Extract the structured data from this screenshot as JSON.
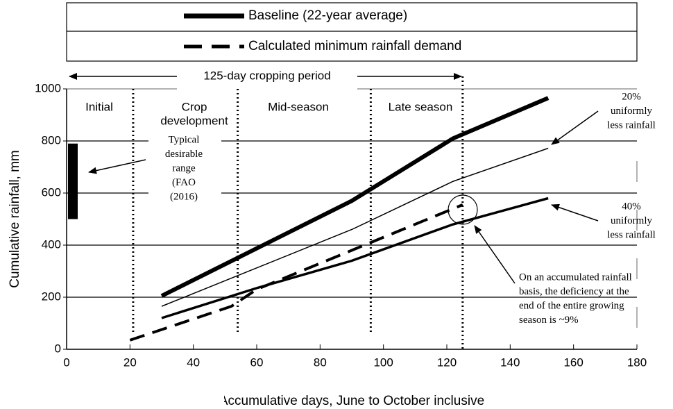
{
  "chart_data": {
    "type": "line",
    "x_label": "Accumulative days, June to October inclusive",
    "y_label": "Cumulative rainfall, mm",
    "xlim": [
      0,
      180
    ],
    "xticks": [
      0,
      20,
      40,
      60,
      80,
      100,
      120,
      140,
      160,
      180
    ],
    "ylim": [
      0,
      1000
    ],
    "yticks": [
      0,
      200,
      400,
      600,
      800,
      1000
    ],
    "grid": true,
    "series": [
      {
        "name": "Baseline (22-year average)",
        "color": "#000000",
        "style": "thick",
        "x": [
          30,
          90,
          122,
          152
        ],
        "values": [
          205,
          570,
          810,
          965
        ]
      },
      {
        "name": "Calculated minimum rainfall demand",
        "color": "#000000",
        "style": "dashed",
        "x": [
          20,
          52,
          60,
          125
        ],
        "values": [
          35,
          165,
          230,
          555
        ]
      },
      {
        "color": "#000000",
        "style": "thin",
        "x": [
          30,
          90,
          122,
          152
        ],
        "values": [
          165,
          460,
          645,
          772
        ]
      },
      {
        "color": "#000000",
        "style": "medium",
        "x": [
          30,
          60,
          90,
          122,
          152
        ],
        "values": [
          120,
          235,
          340,
          480,
          580
        ]
      }
    ],
    "phase_boundaries": [
      21,
      54,
      96,
      125
    ],
    "phases": [
      "Initial",
      [
        "Crop",
        "development"
      ],
      "Mid-season",
      "Late season"
    ],
    "cropping_period": "125-day cropping period",
    "desirable_range": [
      500,
      790
    ],
    "annotations": {
      "range": [
        "Typical",
        "desirable",
        "range",
        "(FAO",
        "(2016)"
      ],
      "less20": [
        "20%",
        "uniformly",
        "less rainfall"
      ],
      "less40": [
        "40%",
        "uniformly",
        "less rainfall"
      ],
      "deficiency": [
        "On an accumulated rainfall",
        "basis, the deficiency at the",
        "end of the entire growing",
        "season is ~9%"
      ]
    }
  }
}
